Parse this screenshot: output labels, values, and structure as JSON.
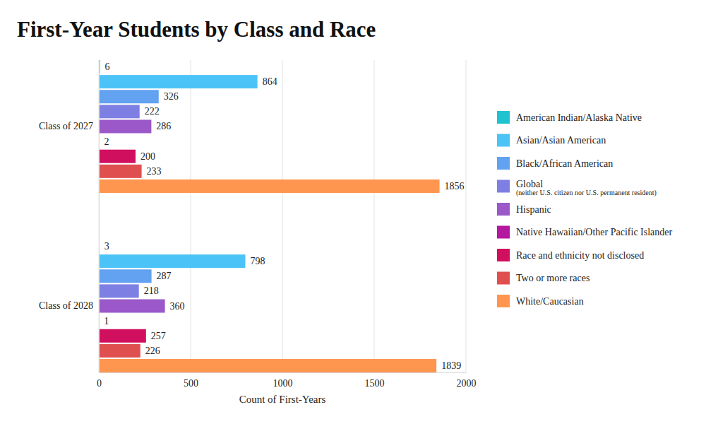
{
  "chart_data": {
    "type": "bar",
    "orientation": "horizontal",
    "title": "First-Year Students by Class and Race",
    "xlabel": "Count of First-Years",
    "categories": [
      "Class of 2027",
      "Class of 2028"
    ],
    "series": [
      {
        "name": "American Indian/Alaska Native",
        "color": "#1ec3cf",
        "values": [
          6,
          3
        ]
      },
      {
        "name": "Asian/Asian American",
        "color": "#4cc3f7",
        "values": [
          864,
          798
        ]
      },
      {
        "name": "Black/African American",
        "color": "#62a2f0",
        "values": [
          326,
          287
        ]
      },
      {
        "name": "Global (neither U.S. citizen nor U.S. permanent resident)",
        "color": "#7d80e2",
        "values": [
          222,
          218
        ]
      },
      {
        "name": "Hispanic",
        "color": "#9a58c8",
        "values": [
          286,
          360
        ]
      },
      {
        "name": "Native Hawaiian/Other Pacific Islander",
        "color": "#b3189f",
        "values": [
          2,
          1
        ]
      },
      {
        "name": "Race and ethnicity not disclosed",
        "color": "#d10f5f",
        "values": [
          200,
          257
        ]
      },
      {
        "name": "Two or more races",
        "color": "#e04f4f",
        "values": [
          233,
          226
        ]
      },
      {
        "name": "White/Caucasian",
        "color": "#ff9650",
        "values": [
          1856,
          1839
        ]
      }
    ],
    "xlim": [
      0,
      2000
    ],
    "xticks": [
      0,
      500,
      1000,
      1500,
      2000
    ],
    "grid": true,
    "data_labels": true,
    "legend": "right"
  }
}
